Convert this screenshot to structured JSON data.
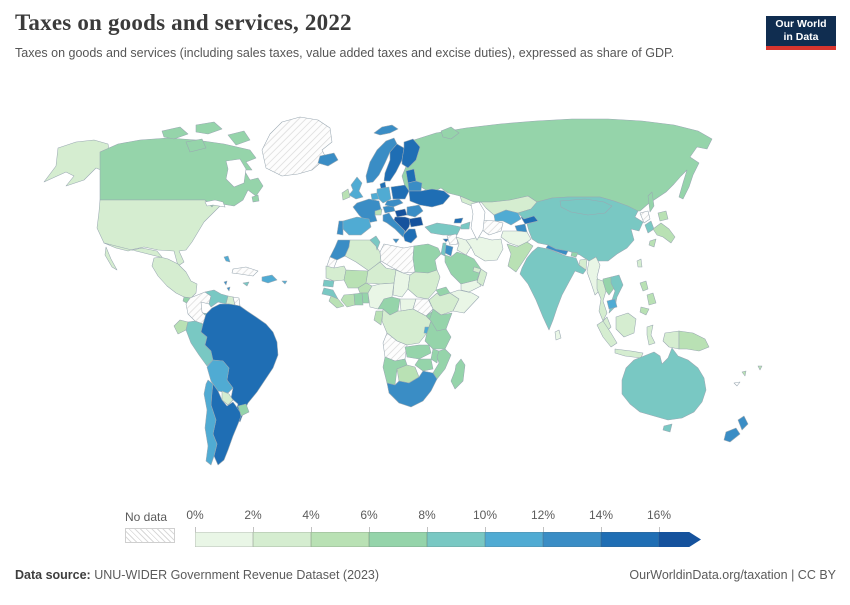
{
  "header": {
    "title": "Taxes on goods and services, 2022",
    "subtitle": "Taxes on goods and services (including sales taxes, value added taxes and excise duties), expressed as share of GDP.",
    "logo": {
      "line1": "Our World",
      "line2": "in Data"
    }
  },
  "legend": {
    "no_data_label": "No data",
    "tick_labels": [
      "0%",
      "2%",
      "4%",
      "6%",
      "8%",
      "10%",
      "12%",
      "14%",
      "16%"
    ],
    "palette": [
      "#e9f6e6",
      "#d5edd0",
      "#b9e1b4",
      "#95d4aa",
      "#79c8c3",
      "#50abd3",
      "#3a8dc5",
      "#1f6eb4",
      "#15529d"
    ],
    "hatch_color": "#d9d9d9"
  },
  "footer": {
    "source_label": "Data source:",
    "source_text": " UNU-WIDER Government Revenue Dataset (2023)",
    "link": "OurWorldinData.org/taxation",
    "separator": " | ",
    "license": "CC BY"
  },
  "chart_data": {
    "type": "choropleth_map",
    "title": "Taxes on goods and services, 2022",
    "value_label": "Taxes on goods and services as share of GDP",
    "bucket_ranges": [
      "0-2%",
      "2-4%",
      "4-6%",
      "6-8%",
      "8-10%",
      "10-12%",
      "12-14%",
      "14-16%",
      ">16%"
    ],
    "no_data_index": -1,
    "regions": {
      "alaska": 1,
      "canada": 3,
      "arctic-island-1": 3,
      "arctic-island-2": 3,
      "arctic-island-3": 3,
      "arctic-island-4": 3,
      "newfoundland": 3,
      "greenland": -1,
      "iceland": 6,
      "svalbard": 6,
      "novaya-zemlya": 3,
      "usa": 1,
      "baja": 1,
      "mexico": 1,
      "guatemala": 3,
      "honduras-nicaragua": 6,
      "costa-rica-panama": 4,
      "cuba": -1,
      "jamaica": 4,
      "hispaniola": 5,
      "puerto-rico": 5,
      "bahamas": 5,
      "antilles-1": 6,
      "antilles-2": 6,
      "colombia": -1,
      "venezuela": 4,
      "guyana": 1,
      "suriname": -1,
      "ecuador": 2,
      "peru": 4,
      "brazil": 7,
      "bolivia": 5,
      "paraguay": 1,
      "uruguay": 3,
      "argentina": 7,
      "chile": 5,
      "norway": 6,
      "sweden": 7,
      "finland": 7,
      "denmark": 7,
      "baltics": 7,
      "belarus": 6,
      "ukraine": 7,
      "uk": 5,
      "ireland": 2,
      "france": 6,
      "benelux": 5,
      "germany": 5,
      "switzerland": 2,
      "austria": 6,
      "czech-slovakia": 6,
      "poland": 7,
      "hungary": 8,
      "romania": 6,
      "balkans": 8,
      "bulgaria": 8,
      "greece": 7,
      "italy": 6,
      "sicily": 6,
      "portugal": 6,
      "spain": 5,
      "russia": 3,
      "sakhalin": 3,
      "kazakhstan": 1,
      "uzbekistan": 5,
      "kyrgyzstan": 7,
      "tajikistan": 6,
      "turkmenistan": -1,
      "afghanistan": 0,
      "pakistan": 2,
      "iran": 0,
      "iraq": 0,
      "saudi-arabia": 3,
      "yemen": 0,
      "oman": 1,
      "uae": 1,
      "jordan": 6,
      "syria": -1,
      "lebanon-israel": 4,
      "turkey": 4,
      "cyprus": 7,
      "georgia": 7,
      "armenia-azerbaijan": 4,
      "india": 4,
      "nepal": 6,
      "bhutan": 3,
      "bangladesh": 1,
      "sri-lanka": 0,
      "myanmar": 0,
      "thailand": 1,
      "laos": 3,
      "vietnam": 4,
      "cambodia": 5,
      "malaysia": 1,
      "borneo": 1,
      "sumatra": 1,
      "java": 1,
      "sulawesi": 1,
      "west-papua": 1,
      "papua-new-guinea": 2,
      "philippines-1": 2,
      "philippines-2": 2,
      "philippines-3": 2,
      "taiwan": 1,
      "north-korea": -1,
      "south-korea": 4,
      "japan-hokkaido": 2,
      "japan-honshu": 2,
      "japan-kyushu": 2,
      "china": 4,
      "mongolia": 4,
      "australia": 4,
      "tasmania": 4,
      "new-zealand-north": 6,
      "new-zealand-south": 6,
      "fiji": 2,
      "vanuatu": 2,
      "new-caledonia": -1,
      "morocco": 6,
      "western-sahara": -1,
      "algeria": 1,
      "tunisia": 4,
      "libya": -1,
      "egypt": 3,
      "mauritania": 1,
      "mali": 2,
      "burkina-faso": 2,
      "niger": 1,
      "chad": 0,
      "sudan": 1,
      "eritrea": 3,
      "ethiopia": 1,
      "somalia": 0,
      "senegal": 4,
      "guinea": 4,
      "sierra-leone-liberia": 2,
      "cote-divoire": 2,
      "ghana": 3,
      "togo-benin": 3,
      "nigeria": 0,
      "cameroon": 3,
      "central-african-republic": 0,
      "south-sudan": -1,
      "uganda": 3,
      "kenya": 3,
      "drc": 1,
      "gabon-congo": 2,
      "rwanda-burundi": 5,
      "tanzania": 3,
      "angola": -1,
      "zambia": 3,
      "malawi": 3,
      "mozambique": 3,
      "zimbabwe": 3,
      "namibia": 3,
      "botswana": 2,
      "south-africa": 6,
      "madagascar": 3
    }
  }
}
